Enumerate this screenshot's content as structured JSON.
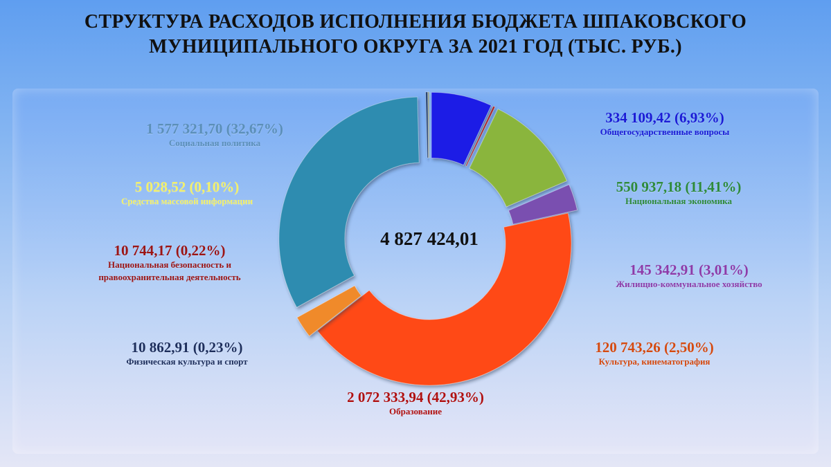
{
  "title": {
    "line1": "СТРУКТУРА РАСХОДОВ ИСПОЛНЕНИЯ БЮДЖЕТА ШПАКОВСКОГО",
    "line2": "МУНИЦИПАЛЬНОГО ОКРУГА ЗА 2021 ГОД  (ТЫС. РУБ.)"
  },
  "total": "4 827 424,01",
  "chart_data": {
    "type": "pie",
    "title": "СТРУКТУРА РАСХОДОВ ИСПОЛНЕНИЯ БЮДЖЕТА ШПАКОВСКОГО МУНИЦИПАЛЬНОГО ОКРУГА ЗА 2021 ГОД  (ТЫС. РУБ.)",
    "donut": true,
    "center_label": "4 827 424,01",
    "slices": [
      {
        "category": "Общегосударственные вопросы",
        "value": 334109.42,
        "value_label": "334 109,42 (6,93%)",
        "percent": 6.93,
        "color": "#1c1ce6",
        "label_color": "#1b1bd6"
      },
      {
        "category": "Национальная безопасность и правоохранительная деятельность",
        "value": 10744.17,
        "value_label": "10 744,17 (0,22%)",
        "percent": 0.22,
        "color": "#a3282a",
        "label_color": "#9b1414"
      },
      {
        "category": "Национальная экономика",
        "value": 550937.18,
        "value_label": "550 937,18 (11,41%)",
        "percent": 11.41,
        "color": "#8ab53d",
        "label_color": "#2e8a3a"
      },
      {
        "category": "Жилищно-коммунальное хозяйство",
        "value": 145342.91,
        "value_label": "145 342,91 (3,01%)",
        "percent": 3.01,
        "color": "#7a4fb0",
        "label_color": "#8e3ba8"
      },
      {
        "category": "Образование",
        "value": 2072333.94,
        "value_label": "2 072 333,94 (42,93%)",
        "percent": 42.93,
        "color": "#ff4a18",
        "label_color": "#b01010"
      },
      {
        "category": "Культура, кинематография",
        "value": 120743.26,
        "value_label": "120 743,26 (2,50%)",
        "percent": 2.5,
        "color": "#f08a2c",
        "label_color": "#d54a10"
      },
      {
        "category": "Социальная политика",
        "value": 1577321.7,
        "value_label": "1 577 321,70 (32,67%)",
        "percent": 32.67,
        "color": "#2f8cb0",
        "label_color": "#5b8fb8"
      },
      {
        "category": "Физическая культура и спорт",
        "value": 10862.91,
        "value_label": "10 862,91 (0,23%)",
        "percent": 0.23,
        "color": "#1f3a6a",
        "label_color": "#1e2f5c"
      },
      {
        "category": "Средства массовой информации",
        "value": 5028.52,
        "value_label": "5 028,52 (0,10%)",
        "percent": 0.1,
        "color": "#8a9a8a",
        "label_color": "#f3f06a"
      }
    ]
  }
}
